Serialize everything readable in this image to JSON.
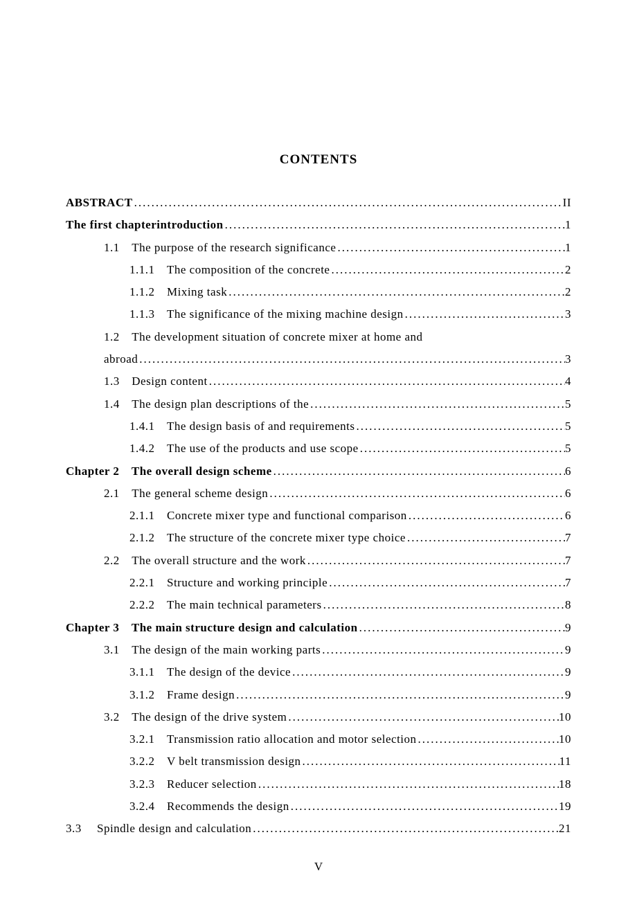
{
  "title": "CONTENTS",
  "page_number": "V",
  "entries": [
    {
      "indent": 0,
      "bold": true,
      "num": "",
      "label": "ABSTRACT",
      "page": "II"
    },
    {
      "indent": 0,
      "bold": true,
      "num": "",
      "label": "The first chapterintroduction",
      "page": "1"
    },
    {
      "indent": 1,
      "bold": false,
      "num": "1.1",
      "label": "The purpose of the research significance",
      "page": "1"
    },
    {
      "indent": 2,
      "bold": false,
      "num": "1.1.1",
      "label": "The composition of the concrete",
      "page": "2"
    },
    {
      "indent": 2,
      "bold": false,
      "num": "1.1.2",
      "label": "Mixing task",
      "page": "2"
    },
    {
      "indent": 2,
      "bold": false,
      "num": "1.1.3",
      "label": "The significance of the mixing machine design",
      "page": "3"
    },
    {
      "indent": 1,
      "bold": false,
      "num": "1.2",
      "label": "The development situation of concrete mixer at home and",
      "page": "",
      "nowrap_full": true
    },
    {
      "indent": 1,
      "bold": false,
      "num": "",
      "label": "abroad",
      "page": "3",
      "continuation": true
    },
    {
      "indent": 1,
      "bold": false,
      "num": "1.3",
      "label": "Design content",
      "page": "4"
    },
    {
      "indent": 1,
      "bold": false,
      "num": "1.4",
      "label": "The design plan descriptions of the",
      "page": "5"
    },
    {
      "indent": 2,
      "bold": false,
      "num": "1.4.1",
      "label": "The design basis of and requirements",
      "page": "5"
    },
    {
      "indent": 2,
      "bold": false,
      "num": "1.4.2",
      "label": "The use of the products and use scope",
      "page": "5"
    },
    {
      "indent": 0,
      "bold": true,
      "num": "Chapter 2",
      "label": "The overall design scheme",
      "page": "6",
      "chapter": true
    },
    {
      "indent": 1,
      "bold": false,
      "num": "2.1",
      "label": "The general scheme design",
      "page": "6"
    },
    {
      "indent": 2,
      "bold": false,
      "num": "2.1.1",
      "label": "Concrete mixer type and functional comparison",
      "page": "6"
    },
    {
      "indent": 2,
      "bold": false,
      "num": "2.1.2",
      "label": "The structure of the concrete mixer type choice",
      "page": "7"
    },
    {
      "indent": 1,
      "bold": false,
      "num": "2.2",
      "label": "The overall structure and the work",
      "page": "7"
    },
    {
      "indent": 2,
      "bold": false,
      "num": "2.2.1",
      "label": "Structure and working principle",
      "page": "7"
    },
    {
      "indent": 2,
      "bold": false,
      "num": "2.2.2",
      "label": "The main technical parameters",
      "page": "8"
    },
    {
      "indent": 0,
      "bold": true,
      "num": "Chapter 3",
      "label": "The main structure design and calculation",
      "page": "9",
      "chapter": true
    },
    {
      "indent": 1,
      "bold": false,
      "num": "3.1",
      "label": "The design of the main working parts",
      "page": "9"
    },
    {
      "indent": 2,
      "bold": false,
      "num": "3.1.1",
      "label": "The design of the device",
      "page": "9"
    },
    {
      "indent": 2,
      "bold": false,
      "num": "3.1.2",
      "label": "Frame design",
      "page": "9"
    },
    {
      "indent": 1,
      "bold": false,
      "num": "3.2",
      "label": "The design of the drive system",
      "page": "10"
    },
    {
      "indent": 2,
      "bold": false,
      "num": "3.2.1",
      "label": "Transmission ratio allocation and motor selection",
      "page": "10"
    },
    {
      "indent": 2,
      "bold": false,
      "num": "3.2.2",
      "label": "V belt transmission design",
      "page": "11"
    },
    {
      "indent": 2,
      "bold": false,
      "num": "3.2.3",
      "label": "Reducer selection",
      "page": "18"
    },
    {
      "indent": 2,
      "bold": false,
      "num": "3.2.4",
      "label": "Recommends the design",
      "page": "19"
    },
    {
      "indent": 0,
      "bold": false,
      "num": "3.3",
      "label": "Spindle design and calculation",
      "page": "21",
      "section33": true
    }
  ]
}
